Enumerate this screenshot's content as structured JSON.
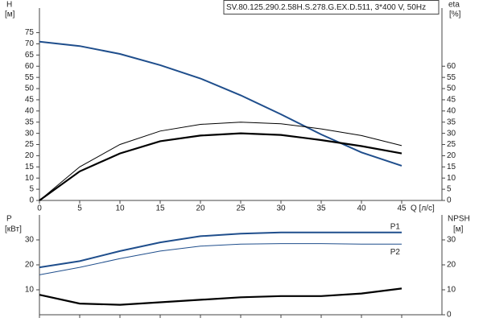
{
  "chart_data": [
    {
      "type": "line",
      "title": "SV.80.125.290.2.58H.S.278.G.EX.D.511, 3*400 V, 50Hz",
      "ylabel": "H",
      "ylabel_unit": "[м]",
      "y2label": "eta",
      "y2label_unit": "[%]",
      "xlabel": "Q [л/с]",
      "x": [
        0,
        5,
        10,
        15,
        20,
        25,
        30,
        35,
        40,
        45
      ],
      "xlim": [
        0,
        50
      ],
      "xticks": [
        0,
        5,
        10,
        15,
        20,
        25,
        30,
        35,
        40,
        45
      ],
      "ylim": [
        0,
        86
      ],
      "yticks": [
        0,
        5,
        10,
        15,
        20,
        25,
        30,
        35,
        40,
        45,
        50,
        55,
        60,
        65,
        70,
        75
      ],
      "y2lim": [
        0,
        86
      ],
      "y2ticks": [
        0,
        5,
        10,
        15,
        20,
        25,
        30,
        35,
        40,
        45,
        50,
        55,
        60
      ],
      "series": [
        {
          "color": "#1f4e8c",
          "values": [
            71,
            69,
            65.5,
            60.5,
            54.5,
            47,
            38.5,
            29.5,
            21.5,
            15.5
          ]
        },
        {
          "color": "#000000",
          "axis": "y2",
          "values": [
            0,
            15,
            25,
            31,
            34,
            35,
            34.3,
            32,
            29,
            24.5
          ]
        },
        {
          "color": "#000000",
          "axis": "y2",
          "values": [
            0,
            13,
            21,
            26.5,
            29,
            30,
            29.3,
            27,
            24.3,
            21
          ]
        }
      ]
    },
    {
      "type": "line",
      "ylabel": "P",
      "ylabel_unit": "[кВт]",
      "y2label": "NPSH",
      "y2label_unit": "[м]",
      "x": [
        0,
        5,
        10,
        15,
        20,
        25,
        30,
        35,
        40,
        45
      ],
      "xlim": [
        0,
        50
      ],
      "xticks": [
        0,
        5,
        10,
        15,
        20,
        25,
        30,
        35,
        40,
        45
      ],
      "ylim": [
        0,
        40
      ],
      "yticks": [
        10,
        20,
        30
      ],
      "y2lim": [
        0,
        40
      ],
      "y2ticks": [
        0,
        10,
        20,
        30
      ],
      "series": [
        {
          "name": "P1",
          "color": "#1f4e8c",
          "values": [
            19,
            21.5,
            25.5,
            29,
            31.5,
            32.5,
            33,
            33,
            33,
            33
          ]
        },
        {
          "name": "P2",
          "color": "#1f4e8c",
          "values": [
            16,
            19,
            22.5,
            25.5,
            27.5,
            28.3,
            28.5,
            28.5,
            28.3,
            28.3
          ]
        },
        {
          "color": "#000000",
          "axis": "y2",
          "values": [
            8,
            4.5,
            4,
            5,
            6,
            7,
            7.5,
            7.5,
            8.5,
            10.5
          ]
        }
      ]
    }
  ]
}
